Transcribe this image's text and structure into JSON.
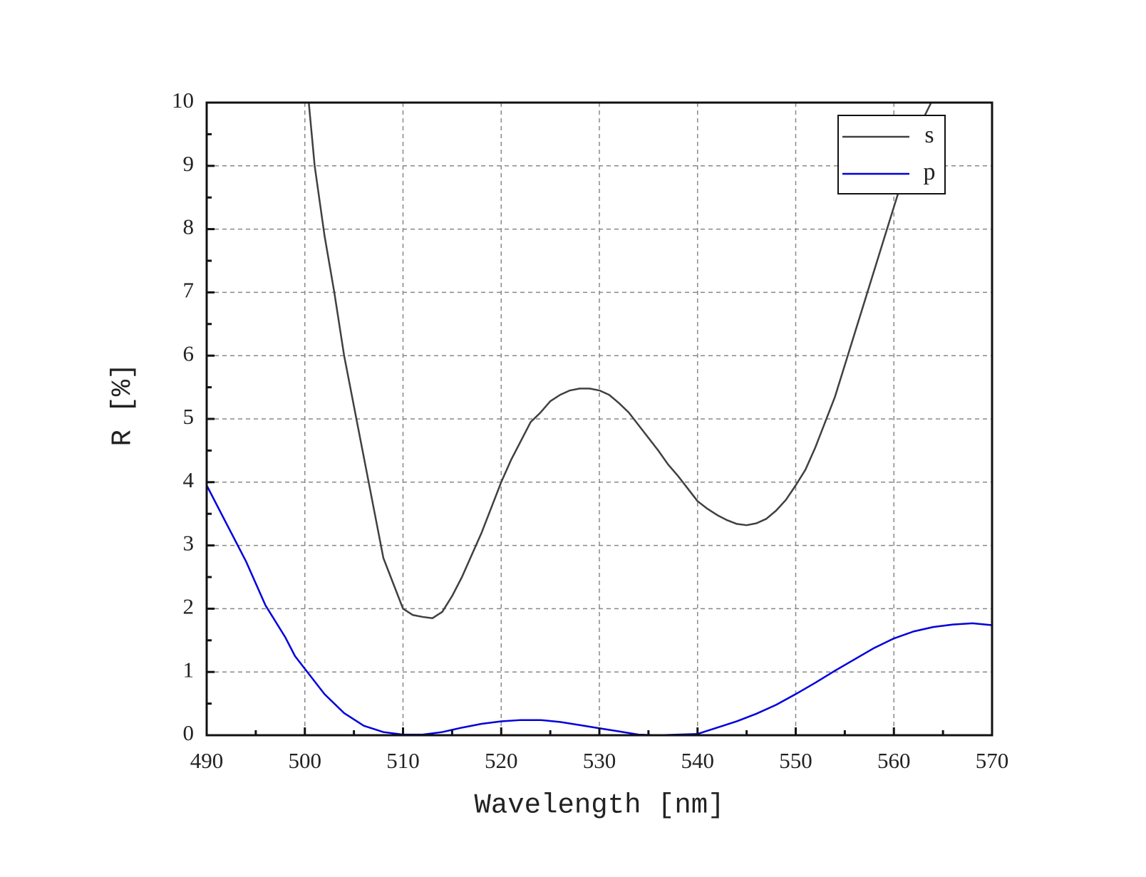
{
  "chart_data": {
    "type": "line",
    "xlabel": "Wavelength [nm]",
    "ylabel": "R [%]",
    "xlim": [
      490,
      570
    ],
    "ylim": [
      0,
      10
    ],
    "xticks": [
      490,
      500,
      510,
      520,
      530,
      540,
      550,
      560,
      570
    ],
    "yticks": [
      0,
      1,
      2,
      3,
      4,
      5,
      6,
      7,
      8,
      9,
      10
    ],
    "xticks_minor": [
      495,
      505,
      515,
      525,
      535,
      545,
      555,
      565
    ],
    "yticks_minor": [
      0.5,
      1.5,
      2.5,
      3.5,
      4.5,
      5.5,
      6.5,
      7.5,
      8.5,
      9.5
    ],
    "grid": true,
    "legend": "upper right",
    "series": [
      {
        "name": "s",
        "color": "#404040",
        "x": [
          500.4,
          501,
          502,
          503,
          504,
          505,
          506,
          507,
          508,
          509,
          510,
          511,
          512,
          513,
          514,
          515,
          516,
          517,
          518,
          519,
          520,
          521,
          522,
          523,
          524,
          525,
          526,
          527,
          528,
          529,
          530,
          531,
          532,
          533,
          534,
          535,
          536,
          537,
          538,
          539,
          540,
          541,
          542,
          543,
          544,
          545,
          546,
          547,
          548,
          549,
          550,
          551,
          552,
          553,
          554,
          555,
          556,
          557,
          558,
          559,
          560,
          561,
          562,
          563,
          563.8
        ],
        "values": [
          10,
          9,
          7.9,
          7,
          6,
          5.2,
          4.4,
          3.6,
          2.8,
          2.4,
          2.0,
          1.9,
          1.87,
          1.85,
          1.95,
          2.2,
          2.5,
          2.85,
          3.2,
          3.6,
          4.0,
          4.35,
          4.65,
          4.95,
          5.1,
          5.28,
          5.38,
          5.45,
          5.48,
          5.48,
          5.45,
          5.38,
          5.25,
          5.1,
          4.9,
          4.7,
          4.5,
          4.28,
          4.1,
          3.9,
          3.7,
          3.58,
          3.48,
          3.4,
          3.34,
          3.32,
          3.35,
          3.42,
          3.55,
          3.72,
          3.95,
          4.2,
          4.55,
          4.95,
          5.35,
          5.85,
          6.35,
          6.85,
          7.35,
          7.85,
          8.35,
          8.85,
          9.35,
          9.75,
          10
        ]
      },
      {
        "name": "p",
        "color": "#0000dd",
        "x": [
          490,
          492,
          494,
          496,
          498,
          499,
          500,
          502,
          504,
          506,
          508,
          510,
          512,
          514,
          516,
          518,
          520,
          522,
          524,
          526,
          528,
          530,
          532,
          534,
          536,
          538,
          540,
          542,
          544,
          546,
          548,
          550,
          552,
          554,
          556,
          558,
          560,
          562,
          564,
          566,
          568,
          570
        ],
        "values": [
          3.95,
          3.35,
          2.75,
          2.05,
          1.55,
          1.25,
          1.05,
          0.65,
          0.35,
          0.15,
          0.05,
          0.01,
          0.01,
          0.05,
          0.12,
          0.18,
          0.22,
          0.24,
          0.24,
          0.21,
          0.16,
          0.11,
          0.06,
          0.01,
          0,
          0.01,
          0.02,
          0.12,
          0.22,
          0.34,
          0.48,
          0.65,
          0.83,
          1.02,
          1.2,
          1.38,
          1.53,
          1.64,
          1.71,
          1.75,
          1.77,
          1.74
        ]
      }
    ]
  }
}
